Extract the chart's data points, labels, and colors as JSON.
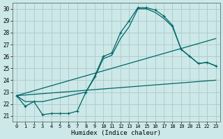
{
  "xlabel": "Humidex (Indice chaleur)",
  "bg_color": "#cce8e8",
  "grid_color": "#b0cccc",
  "line_color": "#006666",
  "xlim": [
    -0.5,
    23.5
  ],
  "ylim": [
    20.5,
    30.5
  ],
  "xticks": [
    0,
    1,
    2,
    3,
    4,
    5,
    6,
    7,
    8,
    9,
    10,
    11,
    12,
    13,
    14,
    15,
    16,
    17,
    18,
    19,
    20,
    21,
    22,
    23
  ],
  "yticks": [
    21,
    22,
    23,
    24,
    25,
    26,
    27,
    28,
    29,
    30
  ],
  "line1_x": [
    0,
    1,
    2,
    3,
    4,
    5,
    6,
    7,
    8,
    9,
    10,
    11,
    12,
    13,
    14,
    15,
    16,
    17,
    18,
    19,
    20,
    21,
    22,
    23
  ],
  "line1_y": [
    22.7,
    21.8,
    22.2,
    21.1,
    21.2,
    21.2,
    21.2,
    21.4,
    23.0,
    24.3,
    26.0,
    26.3,
    28.0,
    29.0,
    30.1,
    30.1,
    29.9,
    29.4,
    28.6,
    26.6,
    26.0,
    25.4,
    25.5,
    25.2
  ],
  "line2_x": [
    0,
    23
  ],
  "line2_y": [
    22.7,
    27.5
  ],
  "line3_x": [
    0,
    23
  ],
  "line3_y": [
    22.7,
    24.0
  ],
  "line4_x": [
    0,
    1,
    2,
    3,
    8,
    9,
    10,
    11,
    12,
    13,
    14,
    15,
    16,
    17,
    18,
    19,
    20,
    21,
    22,
    23
  ],
  "line4_y": [
    22.7,
    22.2,
    22.2,
    22.2,
    23.0,
    24.2,
    25.8,
    26.1,
    27.5,
    28.5,
    30.0,
    30.0,
    29.7,
    29.2,
    28.5,
    26.6,
    26.0,
    25.4,
    25.5,
    25.2
  ]
}
